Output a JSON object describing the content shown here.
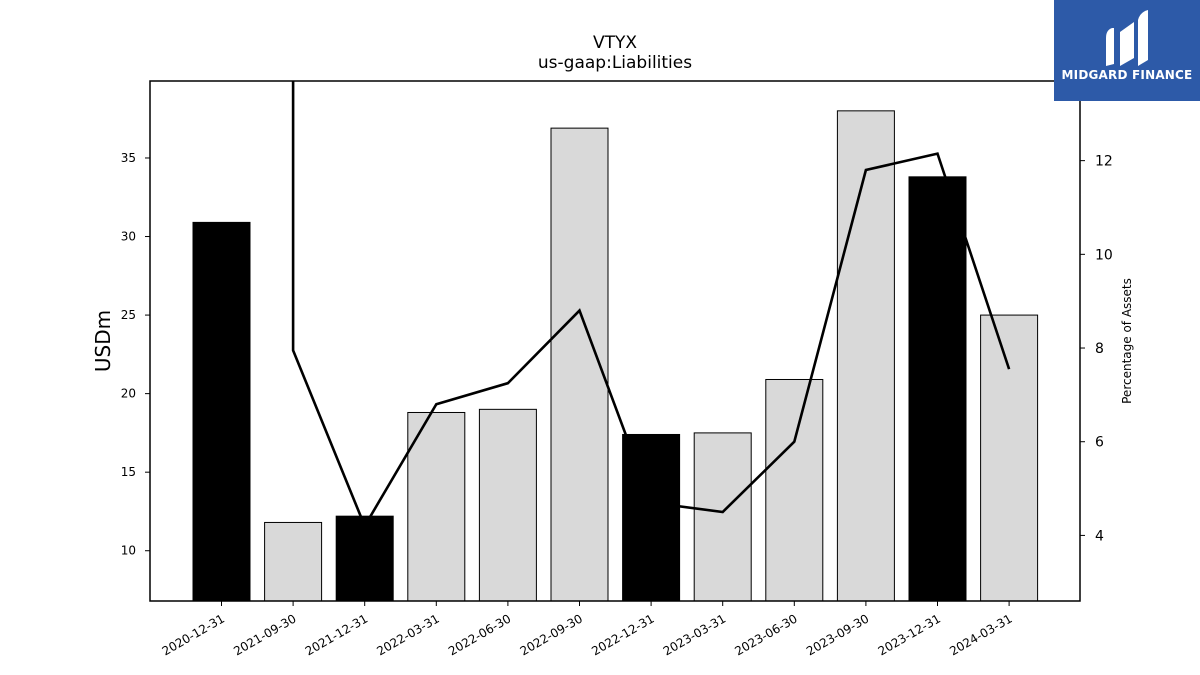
{
  "chart_data": {
    "type": "bar",
    "title": "VTYX",
    "subtitle": "us-gaap:Liabilities",
    "ylabel": "USDm",
    "y2label": "Percentage of Assets",
    "categories": [
      "2020-12-31",
      "2021-09-30",
      "2021-12-31",
      "2022-03-31",
      "2022-06-30",
      "2022-09-30",
      "2022-12-31",
      "2023-03-31",
      "2023-06-30",
      "2023-09-30",
      "2023-12-31",
      "2024-03-31"
    ],
    "series": [
      {
        "values": [
          30.9,
          11.8,
          12.2,
          18.8,
          19.0,
          36.9,
          17.4,
          17.5,
          20.9,
          38.0,
          33.8,
          25.0
        ],
        "colors": [
          "#000000",
          "#d9d9d9",
          "#000000",
          "#d9d9d9",
          "#d9d9d9",
          "#d9d9d9",
          "#000000",
          "#d9d9d9",
          "#d9d9d9",
          "#d9d9d9",
          "#000000",
          "#d9d9d9"
        ]
      },
      {
        "type": "line",
        "axis": "right",
        "values": [
          null,
          7.95,
          4.2,
          6.8,
          7.25,
          8.8,
          4.7,
          4.5,
          6.0,
          11.8,
          12.15,
          7.55
        ],
        "note_first_point_off_scale": true,
        "color": "#000000"
      }
    ],
    "ylim": [
      6.8,
      39.9
    ],
    "y_ticks": [
      10,
      15,
      20,
      25,
      30,
      35
    ],
    "y2lim": [
      2.6,
      13.7
    ],
    "y2_ticks": [
      4,
      6,
      8,
      10,
      12
    ],
    "grid": false
  },
  "logo": {
    "text": "MIDGARD FINANCE",
    "color": "#2d5aa8"
  }
}
